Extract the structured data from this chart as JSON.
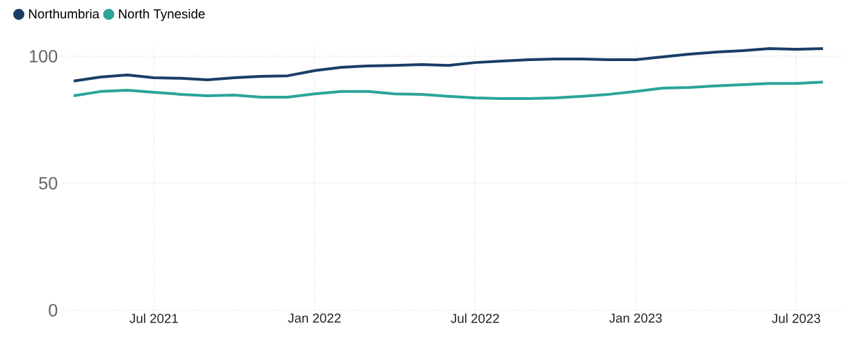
{
  "chart_data": {
    "type": "line",
    "x": [
      "2021-04",
      "2021-05",
      "2021-06",
      "2021-07",
      "2021-08",
      "2021-09",
      "2021-10",
      "2021-11",
      "2021-12",
      "2022-01",
      "2022-02",
      "2022-03",
      "2022-04",
      "2022-05",
      "2022-06",
      "2022-07",
      "2022-08",
      "2022-09",
      "2022-10",
      "2022-11",
      "2022-12",
      "2023-01",
      "2023-02",
      "2023-03",
      "2023-04",
      "2023-05",
      "2023-06",
      "2023-07",
      "2023-08"
    ],
    "series": [
      {
        "name": "Northumbria",
        "color": "#1a3e66",
        "values": [
          90.2,
          91.8,
          92.6,
          91.5,
          91.3,
          90.7,
          91.5,
          92.1,
          92.3,
          94.3,
          95.6,
          96.2,
          96.4,
          96.7,
          96.4,
          97.5,
          98.1,
          98.6,
          98.9,
          98.9,
          98.6,
          98.6,
          99.7,
          100.8,
          101.6,
          102.2,
          103.0,
          102.7,
          103.0
        ]
      },
      {
        "name": "North Tyneside",
        "color": "#2ca49a",
        "values": [
          84.4,
          86.1,
          86.6,
          85.8,
          85.0,
          84.4,
          84.7,
          83.9,
          83.9,
          85.2,
          86.1,
          86.1,
          85.2,
          85.0,
          84.2,
          83.6,
          83.3,
          83.3,
          83.6,
          84.2,
          85.0,
          86.1,
          87.4,
          87.7,
          88.3,
          88.8,
          89.3,
          89.3,
          89.8
        ]
      }
    ],
    "xlim": [
      "2021-03-17",
      "2023-08-25"
    ],
    "xticks": [
      {
        "value": "2021-07",
        "label": "Jul 2021"
      },
      {
        "value": "2022-01",
        "label": "Jan 2022"
      },
      {
        "value": "2022-07",
        "label": "Jul 2022"
      },
      {
        "value": "2023-01",
        "label": "Jan 2023"
      },
      {
        "value": "2023-07",
        "label": "Jul 2023"
      }
    ],
    "ylim": [
      0,
      104
    ],
    "yticks": [
      0,
      50,
      100
    ],
    "grid": true,
    "legend": "top left",
    "line_style": "solid"
  }
}
